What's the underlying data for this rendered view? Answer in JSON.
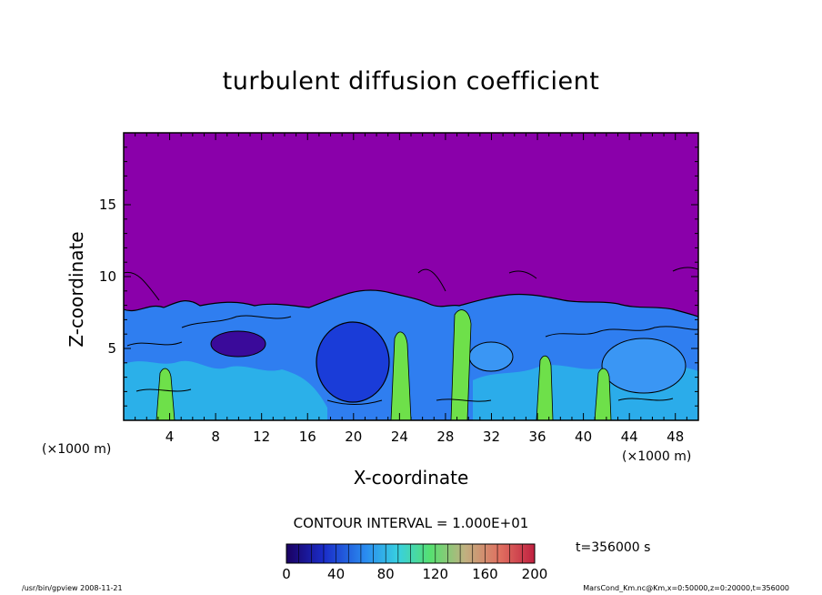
{
  "chart_data": {
    "type": "heatmap",
    "title": "turbulent diffusion coefficient",
    "xlabel": "X-coordinate",
    "ylabel": "Z-coordinate",
    "x_unit": "(×1000 m)",
    "y_unit": "(×1000 m)",
    "xlim": [
      0,
      50
    ],
    "ylim": [
      0,
      20
    ],
    "xticks": [
      4,
      8,
      12,
      16,
      20,
      24,
      28,
      32,
      36,
      40,
      44,
      48
    ],
    "yticks": [
      5,
      10,
      15
    ],
    "contour_interval": "CONTOUR INTERVAL = 1.000E+01",
    "colorbar": {
      "min": 0,
      "max": 200,
      "ticks": [
        0,
        40,
        80,
        120,
        160,
        200
      ]
    },
    "time_label": "t=356000 s",
    "colors": {
      "background": "#8a00aa",
      "deep_blue": "#1a3cd8",
      "mid_blue": "#2f7ef0",
      "cyan": "#2ab8e8",
      "green": "#6ee04a"
    }
  },
  "footer": {
    "left": "/usr/bin/gpview   2008-11-21",
    "right": "MarsCond_Km.nc@Km,x=0:50000,z=0:20000,t=356000"
  }
}
